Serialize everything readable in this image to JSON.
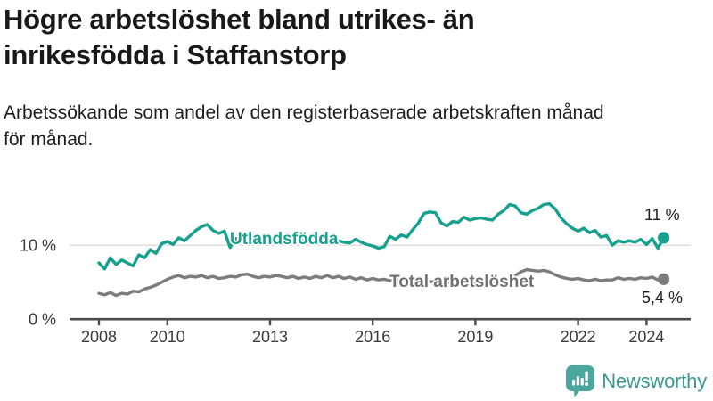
{
  "chart_data": {
    "type": "line",
    "title": "Högre arbetslöshet bland utrikes- än inrikesfödda i Staffanstorp",
    "subtitle": "Arbetssökande som andel av den registerbaserade arbetskraften månad för månad.",
    "x_unit": "year",
    "x_start": 2008.0,
    "x_step_years": 0.166667,
    "x_ticks": [
      2008,
      2010,
      2013,
      2016,
      2019,
      2022,
      2024
    ],
    "y_ticks": [
      {
        "value": 0,
        "label": "0 %"
      },
      {
        "value": 10,
        "label": "10 %"
      }
    ],
    "xlim": [
      2008,
      2024.9
    ],
    "ylim": [
      0,
      17
    ],
    "grid": "horizontal-at-10-only",
    "legend_position": "inline-on-lines",
    "series": [
      {
        "name": "Utlandsfödda",
        "color": "#16a08d",
        "end_label": "11 %",
        "end_value": 11,
        "values": [
          7.6,
          6.8,
          8.3,
          7.4,
          8.0,
          7.6,
          7.2,
          8.7,
          8.3,
          9.4,
          8.9,
          10.2,
          10.5,
          10.1,
          11.0,
          10.6,
          11.3,
          12.0,
          12.5,
          12.8,
          12.0,
          11.6,
          11.9,
          9.7,
          10.9,
          10.8,
          11.0,
          10.7,
          10.9,
          10.6,
          10.8,
          10.5,
          10.8,
          10.6,
          10.9,
          10.7,
          10.9,
          10.6,
          10.8,
          10.5,
          10.7,
          10.4,
          10.6,
          10.4,
          10.3,
          10.8,
          10.4,
          10.1,
          9.9,
          9.6,
          9.8,
          11.2,
          10.8,
          11.4,
          11.1,
          12.1,
          13.0,
          14.3,
          14.5,
          14.4,
          13.0,
          12.6,
          13.2,
          13.1,
          13.8,
          13.4,
          13.6,
          13.7,
          13.5,
          13.4,
          14.2,
          14.7,
          15.5,
          15.3,
          14.4,
          14.2,
          14.7,
          15.0,
          15.5,
          15.6,
          14.9,
          13.7,
          12.9,
          12.3,
          11.9,
          12.3,
          11.7,
          12.0,
          11.1,
          11.3,
          10.0,
          10.6,
          10.4,
          10.6,
          10.4,
          10.8,
          10.1,
          10.9,
          9.6,
          11.0
        ]
      },
      {
        "name": "Total arbetslöshet",
        "color": "#7c7c7c",
        "end_label": "5,4 %",
        "end_value": 5.4,
        "values": [
          3.5,
          3.3,
          3.6,
          3.2,
          3.5,
          3.4,
          3.8,
          3.7,
          4.1,
          4.3,
          4.6,
          5.0,
          5.4,
          5.7,
          5.9,
          5.6,
          5.8,
          5.7,
          5.9,
          5.6,
          5.8,
          5.5,
          5.6,
          5.8,
          5.7,
          6.0,
          6.1,
          5.8,
          5.6,
          5.8,
          5.7,
          5.9,
          5.8,
          5.6,
          5.8,
          5.5,
          5.7,
          5.5,
          5.8,
          5.6,
          5.9,
          5.6,
          5.8,
          5.5,
          5.7,
          5.4,
          5.6,
          5.3,
          5.5,
          5.3,
          5.4,
          5.2,
          5.3,
          5.2,
          5.3,
          5.1,
          5.2,
          5.0,
          5.1,
          5.0,
          5.1,
          4.9,
          5.0,
          4.9,
          5.0,
          4.9,
          5.0,
          4.9,
          5.1,
          5.0,
          5.2,
          5.3,
          5.5,
          5.9,
          6.4,
          6.7,
          6.6,
          6.5,
          6.6,
          6.4,
          6.0,
          5.7,
          5.5,
          5.4,
          5.5,
          5.3,
          5.2,
          5.4,
          5.2,
          5.3,
          5.3,
          5.6,
          5.4,
          5.5,
          5.4,
          5.6,
          5.5,
          5.7,
          5.3,
          5.4
        ]
      }
    ]
  },
  "colors": {
    "accent_teal": "#16a08d",
    "series_gray": "#7c7c7c",
    "gridline": "#dbdbdb",
    "axis": "#4a4a4a",
    "text": "#191919",
    "logo_icon": "#4aa79e",
    "logo_text": "#3b9890"
  },
  "logo": {
    "text": "Newsworthy",
    "icon": "bar-chart-speech-bubble-icon"
  }
}
